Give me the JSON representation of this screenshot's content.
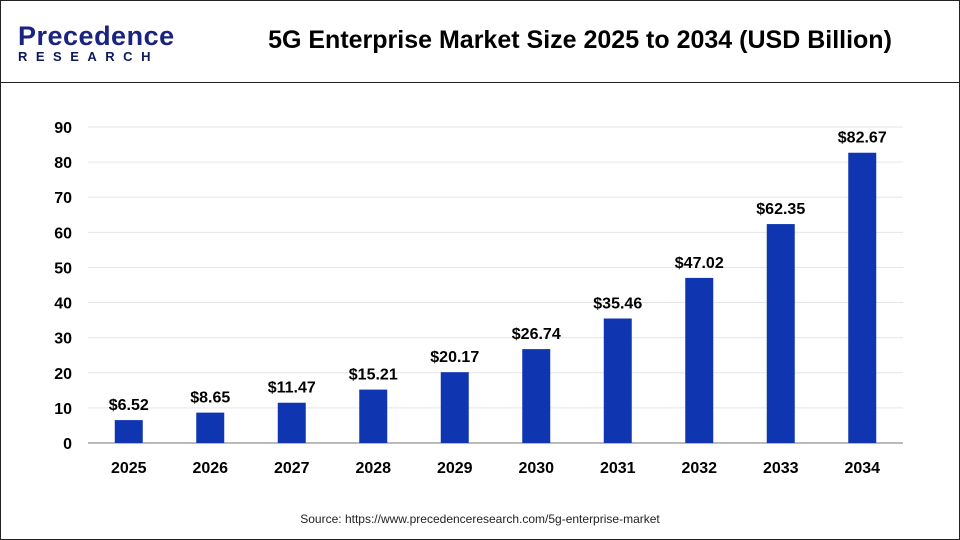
{
  "header": {
    "logo_line1": "Precedence",
    "logo_line2": "RESEARCH",
    "title": "5G Enterprise Market Size 2025 to 2034 (USD Billion)"
  },
  "source": "Source: https://www.precedenceresearch.com/5g-enterprise-market",
  "colors": {
    "bar": "#0f35b0",
    "grid": "#e6e6e6",
    "axis": "#bbbbbb"
  },
  "chart_data": {
    "type": "bar",
    "title": "5G Enterprise Market Size 2025 to 2034 (USD Billion)",
    "categories": [
      "2025",
      "2026",
      "2027",
      "2028",
      "2029",
      "2030",
      "2031",
      "2032",
      "2033",
      "2034"
    ],
    "values": [
      6.52,
      8.65,
      11.47,
      15.21,
      20.17,
      26.74,
      35.46,
      47.02,
      62.35,
      82.67
    ],
    "data_labels": [
      "$6.52",
      "$8.65",
      "$11.47",
      "$15.21",
      "$20.17",
      "$26.74",
      "$35.46",
      "$47.02",
      "$62.35",
      "$82.67"
    ],
    "ylim": [
      0,
      90
    ],
    "yticks": [
      0,
      10,
      20,
      30,
      40,
      50,
      60,
      70,
      80,
      90
    ],
    "grid": true,
    "xlabel": "",
    "ylabel": ""
  }
}
